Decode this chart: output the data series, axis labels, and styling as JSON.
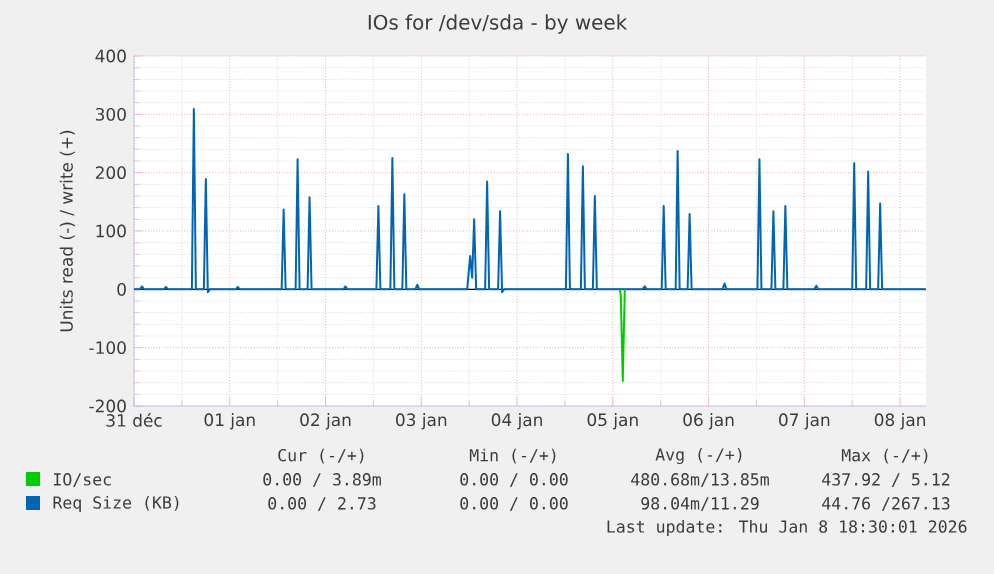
{
  "chart_data": {
    "type": "line",
    "title": "IOs for /dev/sda - by week",
    "ylabel": "Units read (-) / write (+)",
    "xlim": [
      "2025-12-31T12:00",
      "2026-01-08T18:30"
    ],
    "xticks": [
      {
        "value": "2025-12-31T12:00",
        "label": "31 déc"
      },
      {
        "value": "2026-01-01T12:00",
        "label": "01 jan"
      },
      {
        "value": "2026-01-02T12:00",
        "label": "02 jan"
      },
      {
        "value": "2026-01-03T12:00",
        "label": "03 jan"
      },
      {
        "value": "2026-01-04T12:00",
        "label": "04 jan"
      },
      {
        "value": "2026-01-05T12:00",
        "label": "05 jan"
      },
      {
        "value": "2026-01-06T12:00",
        "label": "06 jan"
      },
      {
        "value": "2026-01-07T12:00",
        "label": "07 jan"
      },
      {
        "value": "2026-01-08T12:00",
        "label": "08 jan"
      }
    ],
    "ylim": [
      -200,
      400
    ],
    "yticks": [
      -200,
      -100,
      0,
      100,
      200,
      300,
      400
    ],
    "grid": true,
    "legend": "bottom",
    "ref_lines": [
      {
        "axis": "y",
        "value": 0,
        "color": "#000000"
      }
    ],
    "series": [
      {
        "name": "IO/sec",
        "color": "#00cc00",
        "x": [
          "2026-01-05T13:45",
          "2026-01-05T14:00",
          "2026-01-05T14:30",
          "2026-01-05T15:00"
        ],
        "values": [
          0,
          -10,
          -157,
          0
        ]
      },
      {
        "name": "Req Size (KB)",
        "color": "#0066b3",
        "x": [
          "2025-12-31T12:00",
          "2025-12-31T13:30",
          "2025-12-31T14:00",
          "2025-12-31T14:30",
          "2025-12-31T19:30",
          "2025-12-31T20:00",
          "2025-12-31T20:30",
          "2026-01-01T02:30",
          "2026-01-01T03:00",
          "2026-01-01T03:30",
          "2026-01-01T05:30",
          "2026-01-01T06:00",
          "2026-01-01T06:30",
          "2026-01-01T07:00",
          "2026-01-01T13:30",
          "2026-01-01T14:00",
          "2026-01-01T14:30",
          "2026-01-02T01:00",
          "2026-01-02T01:30",
          "2026-01-02T02:00",
          "2026-01-02T04:30",
          "2026-01-02T05:00",
          "2026-01-02T05:30",
          "2026-01-02T07:30",
          "2026-01-02T08:00",
          "2026-01-02T08:30",
          "2026-01-02T16:30",
          "2026-01-02T17:00",
          "2026-01-02T17:30",
          "2026-01-03T00:45",
          "2026-01-03T01:15",
          "2026-01-03T01:45",
          "2026-01-03T04:15",
          "2026-01-03T04:45",
          "2026-01-03T05:15",
          "2026-01-03T07:15",
          "2026-01-03T07:45",
          "2026-01-03T08:15",
          "2026-01-03T10:30",
          "2026-01-03T11:00",
          "2026-01-03T11:30",
          "2026-01-03T23:30",
          "2026-01-04T00:15",
          "2026-01-04T00:45",
          "2026-01-04T01:15",
          "2026-01-04T01:45",
          "2026-01-04T04:00",
          "2026-01-04T04:30",
          "2026-01-04T05:00",
          "2026-01-04T07:15",
          "2026-01-04T07:45",
          "2026-01-04T08:15",
          "2026-01-04T08:45",
          "2026-01-05T00:15",
          "2026-01-05T00:45",
          "2026-01-05T01:15",
          "2026-01-05T04:00",
          "2026-01-05T04:30",
          "2026-01-05T05:00",
          "2026-01-05T07:00",
          "2026-01-05T07:30",
          "2026-01-05T08:00",
          "2026-01-05T19:30",
          "2026-01-05T20:00",
          "2026-01-05T20:30",
          "2026-01-06T00:15",
          "2026-01-06T00:45",
          "2026-01-06T01:15",
          "2026-01-06T03:45",
          "2026-01-06T04:15",
          "2026-01-06T04:45",
          "2026-01-06T06:45",
          "2026-01-06T07:15",
          "2026-01-06T07:45",
          "2026-01-06T15:30",
          "2026-01-06T16:00",
          "2026-01-06T16:30",
          "2026-01-07T00:15",
          "2026-01-07T00:45",
          "2026-01-07T01:15",
          "2026-01-07T03:45",
          "2026-01-07T04:15",
          "2026-01-07T04:45",
          "2026-01-07T06:45",
          "2026-01-07T07:15",
          "2026-01-07T07:45",
          "2026-01-07T14:30",
          "2026-01-07T15:00",
          "2026-01-07T15:30",
          "2026-01-08T00:00",
          "2026-01-08T00:30",
          "2026-01-08T01:00",
          "2026-01-08T03:30",
          "2026-01-08T04:00",
          "2026-01-08T04:30",
          "2026-01-08T06:30",
          "2026-01-08T07:00",
          "2026-01-08T07:30",
          "2026-01-08T18:30"
        ],
        "values": [
          0,
          0,
          5,
          0,
          0,
          4,
          0,
          0,
          309,
          0,
          0,
          189,
          -5,
          0,
          0,
          4,
          0,
          0,
          137,
          0,
          0,
          223,
          0,
          0,
          158,
          0,
          0,
          5,
          0,
          0,
          143,
          0,
          0,
          225,
          0,
          0,
          163,
          0,
          0,
          8,
          0,
          0,
          57,
          20,
          120,
          0,
          0,
          185,
          0,
          0,
          134,
          -5,
          0,
          0,
          232,
          0,
          0,
          211,
          0,
          0,
          160,
          0,
          0,
          5,
          0,
          0,
          143,
          0,
          0,
          237,
          0,
          0,
          129,
          0,
          0,
          10,
          0,
          0,
          223,
          0,
          0,
          134,
          0,
          0,
          143,
          0,
          0,
          6,
          0,
          0,
          216,
          0,
          0,
          202,
          0,
          0,
          147,
          0,
          0
        ]
      }
    ],
    "annotations": [
      "Cur (-/+)",
      "Min (-/+)",
      "Avg (-/+)",
      "Max (-/+)",
      "0.00 / 3.89m",
      "0.00 / 0.00",
      "480.68m/13.85m",
      "437.92 / 5.12",
      "0.00 / 2.73",
      "0.00 / 0.00",
      "98.04m/11.29",
      "44.76 /267.13",
      "Last update: Thu Jan  8 18:30:01 2026"
    ]
  }
}
